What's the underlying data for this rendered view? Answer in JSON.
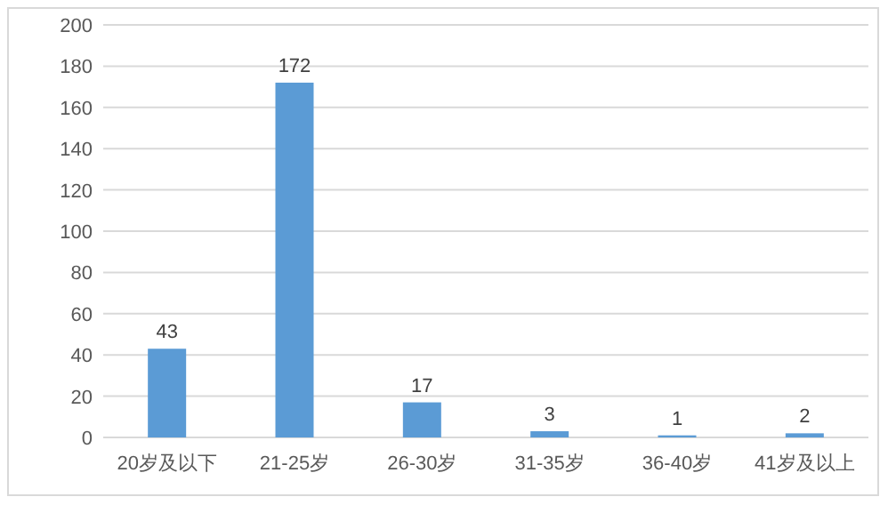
{
  "chart_data": {
    "type": "bar",
    "categories": [
      "20岁及以下",
      "21-25岁",
      "26-30岁",
      "31-35岁",
      "36-40岁",
      "41岁及以上"
    ],
    "values": [
      43,
      172,
      17,
      3,
      1,
      2
    ],
    "color": "#5b9bd5",
    "ylim": [
      0,
      200
    ],
    "yticks": [
      0,
      20,
      40,
      60,
      80,
      100,
      120,
      140,
      160,
      180,
      200
    ],
    "grid": "y",
    "data_labels": true
  }
}
